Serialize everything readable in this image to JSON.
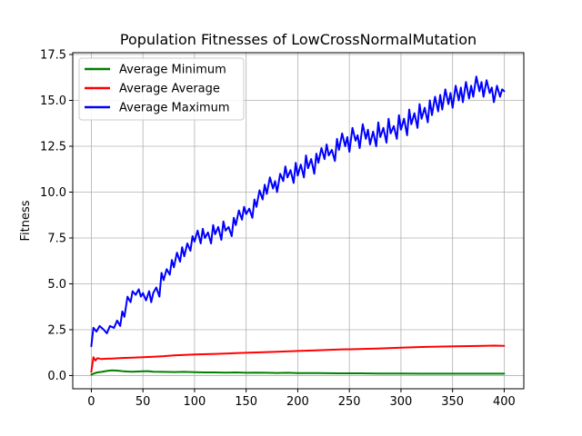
{
  "chart_data": {
    "type": "line",
    "title": "Population Fitnesses of LowCrossNormalMutation",
    "xlabel": "",
    "ylabel": "Fitness",
    "xlim": [
      -18,
      419
    ],
    "ylim": [
      -0.72,
      17.6
    ],
    "xticks": [
      0,
      50,
      100,
      150,
      200,
      250,
      300,
      350,
      400
    ],
    "yticks": [
      0.0,
      2.5,
      5.0,
      7.5,
      10.0,
      12.5,
      15.0,
      17.5
    ],
    "xtick_labels": [
      "0",
      "50",
      "100",
      "150",
      "200",
      "250",
      "300",
      "350",
      "400"
    ],
    "ytick_labels": [
      "0.0",
      "2.5",
      "5.0",
      "7.5",
      "10.0",
      "12.5",
      "15.0",
      "17.5"
    ],
    "grid": true,
    "legend_position": "top-left",
    "series": [
      {
        "name": "Average Minimum",
        "color": "#008000",
        "x": [
          0,
          3,
          6,
          10,
          15,
          20,
          25,
          30,
          35,
          40,
          45,
          50,
          55,
          60,
          70,
          80,
          90,
          100,
          110,
          120,
          130,
          140,
          150,
          160,
          170,
          180,
          190,
          200,
          220,
          240,
          260,
          280,
          300,
          320,
          340,
          360,
          380,
          400
        ],
        "values": [
          0.05,
          0.12,
          0.17,
          0.2,
          0.25,
          0.28,
          0.27,
          0.24,
          0.22,
          0.21,
          0.22,
          0.23,
          0.24,
          0.21,
          0.2,
          0.19,
          0.2,
          0.18,
          0.17,
          0.17,
          0.16,
          0.17,
          0.15,
          0.16,
          0.15,
          0.14,
          0.15,
          0.13,
          0.13,
          0.12,
          0.12,
          0.11,
          0.11,
          0.1,
          0.1,
          0.1,
          0.1,
          0.1
        ]
      },
      {
        "name": "Average Average",
        "color": "#ff0000",
        "x": [
          0,
          2,
          4,
          6,
          10,
          15,
          20,
          30,
          40,
          50,
          60,
          70,
          80,
          90,
          100,
          120,
          140,
          160,
          180,
          200,
          220,
          240,
          260,
          280,
          300,
          320,
          340,
          360,
          380,
          390,
          400
        ],
        "values": [
          0.2,
          1.0,
          0.82,
          0.95,
          0.9,
          0.92,
          0.93,
          0.96,
          0.98,
          1.0,
          1.03,
          1.06,
          1.1,
          1.12,
          1.15,
          1.18,
          1.22,
          1.26,
          1.3,
          1.34,
          1.38,
          1.42,
          1.45,
          1.48,
          1.52,
          1.56,
          1.58,
          1.6,
          1.62,
          1.63,
          1.62
        ]
      },
      {
        "name": "Average Maximum",
        "color": "#0000ff",
        "x": [
          0,
          2,
          5,
          8,
          12,
          15,
          18,
          22,
          25,
          28,
          30,
          32,
          35,
          38,
          40,
          43,
          46,
          48,
          50,
          53,
          56,
          58,
          60,
          63,
          66,
          68,
          70,
          73,
          76,
          78,
          80,
          83,
          86,
          88,
          90,
          93,
          96,
          98,
          100,
          103,
          106,
          108,
          110,
          113,
          116,
          118,
          120,
          123,
          126,
          128,
          130,
          133,
          136,
          138,
          140,
          143,
          146,
          148,
          150,
          153,
          156,
          158,
          160,
          163,
          166,
          168,
          170,
          173,
          176,
          178,
          180,
          183,
          186,
          188,
          190,
          193,
          196,
          198,
          200,
          203,
          206,
          208,
          210,
          213,
          216,
          218,
          220,
          223,
          226,
          228,
          230,
          233,
          236,
          238,
          240,
          243,
          246,
          248,
          250,
          253,
          256,
          258,
          260,
          263,
          266,
          268,
          270,
          273,
          276,
          278,
          280,
          283,
          286,
          288,
          290,
          293,
          296,
          298,
          300,
          303,
          306,
          308,
          310,
          313,
          316,
          318,
          320,
          323,
          326,
          328,
          330,
          333,
          336,
          338,
          340,
          343,
          346,
          348,
          350,
          353,
          356,
          358,
          360,
          363,
          366,
          368,
          370,
          373,
          376,
          378,
          380,
          383,
          386,
          388,
          390,
          393,
          396,
          398,
          400
        ],
        "values": [
          1.6,
          2.6,
          2.4,
          2.7,
          2.5,
          2.3,
          2.7,
          2.6,
          3.0,
          2.7,
          3.5,
          3.2,
          4.3,
          4.0,
          4.6,
          4.4,
          4.7,
          4.3,
          4.5,
          4.1,
          4.6,
          4.0,
          4.5,
          4.8,
          4.3,
          5.6,
          5.2,
          5.8,
          5.5,
          6.3,
          5.9,
          6.7,
          6.2,
          7.0,
          6.5,
          7.2,
          6.8,
          7.6,
          7.3,
          7.9,
          7.2,
          8.0,
          7.5,
          7.8,
          7.2,
          8.2,
          7.7,
          8.1,
          7.4,
          8.4,
          7.9,
          8.1,
          7.6,
          8.6,
          8.2,
          9.0,
          8.5,
          9.2,
          8.8,
          9.1,
          8.6,
          9.6,
          9.2,
          10.1,
          9.6,
          10.4,
          9.9,
          10.8,
          10.2,
          10.6,
          10.0,
          11.0,
          10.6,
          11.4,
          10.8,
          11.2,
          10.5,
          11.6,
          10.9,
          11.5,
          10.8,
          12.0,
          11.3,
          11.8,
          11.0,
          12.1,
          11.6,
          12.4,
          11.8,
          12.6,
          12.0,
          12.3,
          11.7,
          12.9,
          12.3,
          13.2,
          12.5,
          13.0,
          12.2,
          13.5,
          12.8,
          13.1,
          12.4,
          13.7,
          12.9,
          13.4,
          12.6,
          13.3,
          12.5,
          13.8,
          13.0,
          13.5,
          12.7,
          14.0,
          13.2,
          13.6,
          12.9,
          14.2,
          13.4,
          14.0,
          13.1,
          14.5,
          13.7,
          14.3,
          13.5,
          14.8,
          14.0,
          14.6,
          13.8,
          15.0,
          14.2,
          15.2,
          14.4,
          15.3,
          14.5,
          15.6,
          14.8,
          15.4,
          14.6,
          15.8,
          15.0,
          15.7,
          14.9,
          16.0,
          15.1,
          15.8,
          15.2,
          16.3,
          15.5,
          16.0,
          15.2,
          16.1,
          15.4,
          15.7,
          14.9,
          15.8,
          15.2,
          15.6,
          15.5
        ]
      }
    ]
  }
}
